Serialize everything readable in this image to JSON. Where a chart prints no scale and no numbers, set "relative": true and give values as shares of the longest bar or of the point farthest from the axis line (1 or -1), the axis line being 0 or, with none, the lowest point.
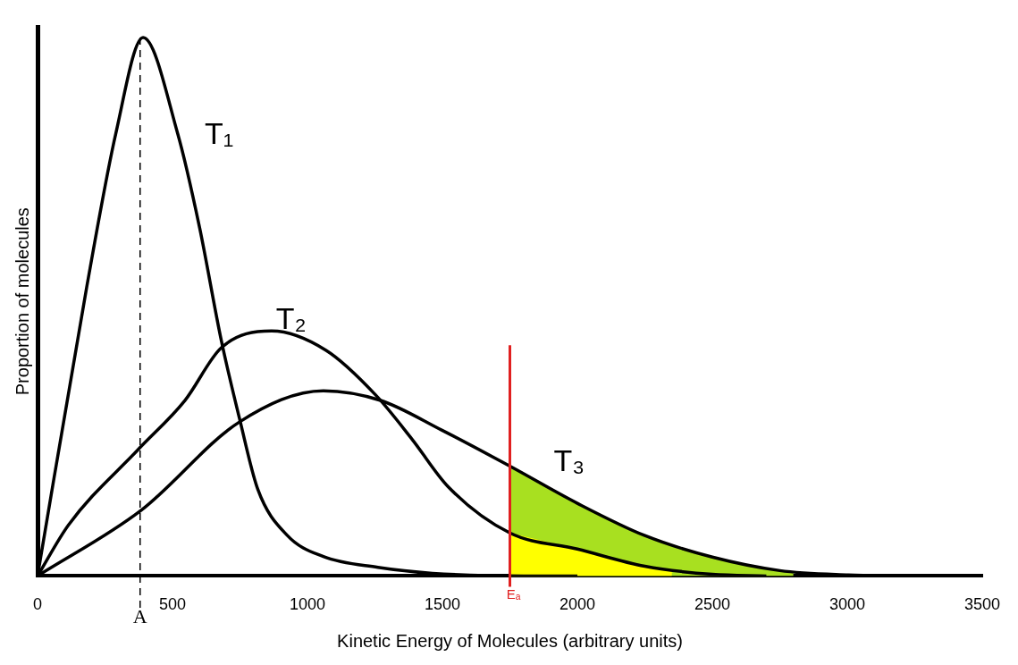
{
  "chart_data": {
    "type": "line",
    "xlabel": "Kinetic Energy of Molecules (arbitrary units)",
    "ylabel": "Proportion of molecules",
    "relative": true,
    "xlim": [
      0,
      3500
    ],
    "xticks": [
      0,
      500,
      1000,
      1500,
      2000,
      2500,
      3000,
      3500
    ],
    "tick_labels": "x",
    "grid": false,
    "legend": false,
    "marker": "none",
    "line_style": "solid",
    "series": [
      {
        "name": "T₁",
        "color": "#000000",
        "x": [
          0,
          182,
          290,
          391,
          519,
          600,
          681,
          748,
          816,
          924,
          1059,
          1261,
          1463,
          1800,
          2000
        ],
        "values": [
          0,
          0.536,
          0.822,
          1,
          0.822,
          0.648,
          0.437,
          0.293,
          0.161,
          0.076,
          0.036,
          0.016,
          0.005,
          0,
          0
        ]
      },
      {
        "name": "T₂",
        "color": "#000000",
        "x": [
          0,
          115,
          371,
          546,
          681,
          867,
          1069,
          1251,
          1386,
          1521,
          1750,
          2000,
          2250,
          2500,
          2700
        ],
        "values": [
          0,
          0.095,
          0.234,
          0.326,
          0.424,
          0.455,
          0.419,
          0.337,
          0.255,
          0.166,
          0.08,
          0.05,
          0.018,
          0.003,
          0
        ]
      },
      {
        "name": "T₃",
        "color": "#000000",
        "x": [
          0,
          384,
          748,
          1059,
          1271,
          1497,
          1750,
          2000,
          2250,
          2500,
          2750,
          3004,
          3200
        ],
        "values": [
          0,
          0.122,
          0.286,
          0.344,
          0.326,
          0.271,
          0.204,
          0.135,
          0.075,
          0.035,
          0.01,
          0.002,
          0
        ]
      }
    ],
    "bands": [
      {
        "axis": "x",
        "from": 1750,
        "to": 2800,
        "color": "#a8e020"
      },
      {
        "axis": "x",
        "from": 1750,
        "to": 2350,
        "color": "#ffff00"
      }
    ],
    "ref_lines": [
      {
        "axis": "x",
        "value": 1750,
        "label": "Eₐ",
        "color": "#e02020",
        "line_style": "solid"
      },
      {
        "axis": "x",
        "value": 380,
        "label": "A",
        "color": "#000000",
        "line_style": "dashed"
      }
    ]
  }
}
